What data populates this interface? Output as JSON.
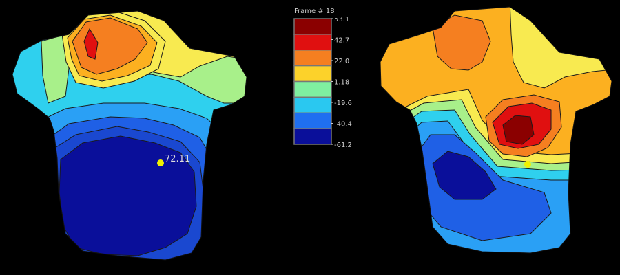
{
  "legend": {
    "title": "Frame # 18",
    "ticks": [
      "53.1",
      "42.7",
      "22.0",
      "1.18",
      "-19.6",
      "-40.4",
      "-61.2"
    ],
    "bands": [
      {
        "color": "#8b0000"
      },
      {
        "color": "#e01010"
      },
      {
        "color": "#f57f20"
      },
      {
        "color": "#fcd22a"
      },
      {
        "color": "#7ff0a0"
      },
      {
        "color": "#2ac8f0"
      },
      {
        "color": "#1f6ff0"
      },
      {
        "color": "#0a0f9a"
      }
    ]
  },
  "left_map": {
    "marker_label": "72.11",
    "marker_color": "#f0f000"
  },
  "right_map": {
    "marker_color": "#f0f000"
  },
  "colors": {
    "background": "#000000",
    "contour_line": "#1a1a1a",
    "dark_red": "#8b0000",
    "red": "#e01010",
    "orange": "#f57f20",
    "yellow_orange": "#fcb020",
    "yellow": "#f8ea50",
    "light_green": "#a8f08a",
    "cyan": "#2fd0ee",
    "light_blue": "#2aa0f5",
    "blue": "#1f60e6",
    "dark_blue": "#0a0f9a"
  }
}
